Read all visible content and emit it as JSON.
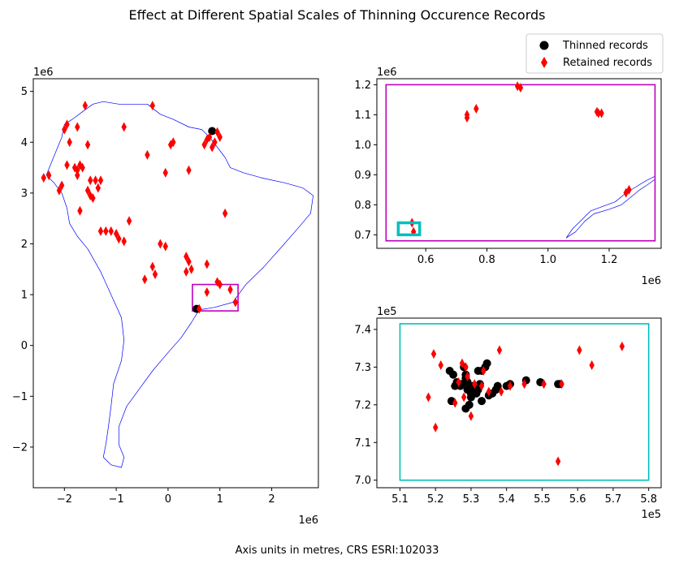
{
  "figure": {
    "title": "Effect at Different Spatial Scales of Thinning Occurence Records",
    "footer": "Axis units in metres, CRS ESRI:102033"
  },
  "legend": {
    "placement": "top-right",
    "items": [
      {
        "label": "Thinned records",
        "marker": "circle",
        "color": "#000000"
      },
      {
        "label": "Retained records",
        "marker": "diamond",
        "color": "#ff0000"
      }
    ]
  },
  "colors": {
    "coastline": "#0000ff",
    "box_mid": "#bf00bf",
    "box_small": "#00bfbf",
    "thinned": "#000000",
    "retained": "#ff0000"
  },
  "chart_data": [
    {
      "type": "scatter",
      "name": "continent",
      "xlim": [
        -2.6,
        2.9
      ],
      "ylim": [
        -2.8,
        5.25
      ],
      "scale_label": "1e6",
      "xticks": [
        -2,
        -1,
        0,
        1,
        2
      ],
      "yticks": [
        -2,
        -1,
        0,
        1,
        2,
        3,
        4,
        5
      ],
      "xtick_labels": [
        "−2",
        "−1",
        "0",
        "1",
        "2"
      ],
      "ytick_labels": [
        "−2",
        "−1",
        "0",
        "1",
        "2",
        "3",
        "4",
        "5"
      ],
      "coastline": [
        [
          -2.35,
          3.35
        ],
        [
          -2.2,
          3.2
        ],
        [
          -2.05,
          3.0
        ],
        [
          -1.95,
          2.7
        ],
        [
          -1.9,
          2.4
        ],
        [
          -1.75,
          2.15
        ],
        [
          -1.55,
          1.9
        ],
        [
          -1.3,
          1.45
        ],
        [
          -1.1,
          1.0
        ],
        [
          -0.9,
          0.55
        ],
        [
          -0.85,
          0.1
        ],
        [
          -0.9,
          -0.3
        ],
        [
          -1.05,
          -0.75
        ],
        [
          -1.1,
          -1.2
        ],
        [
          -1.15,
          -1.6
        ],
        [
          -1.2,
          -1.95
        ],
        [
          -1.25,
          -2.2
        ],
        [
          -1.1,
          -2.35
        ],
        [
          -0.9,
          -2.4
        ],
        [
          -0.85,
          -2.2
        ],
        [
          -0.95,
          -1.95
        ],
        [
          -0.95,
          -1.6
        ],
        [
          -0.8,
          -1.2
        ],
        [
          -0.55,
          -0.85
        ],
        [
          -0.3,
          -0.5
        ],
        [
          -0.05,
          -0.2
        ],
        [
          0.25,
          0.15
        ],
        [
          0.45,
          0.45
        ],
        [
          0.6,
          0.7
        ],
        [
          0.9,
          0.75
        ],
        [
          1.25,
          0.85
        ],
        [
          1.5,
          1.2
        ],
        [
          1.85,
          1.55
        ],
        [
          2.2,
          1.95
        ],
        [
          2.5,
          2.3
        ],
        [
          2.75,
          2.6
        ],
        [
          2.8,
          2.95
        ],
        [
          2.6,
          3.1
        ],
        [
          2.25,
          3.2
        ],
        [
          1.8,
          3.3
        ],
        [
          1.45,
          3.4
        ],
        [
          1.2,
          3.5
        ],
        [
          1.1,
          3.7
        ],
        [
          0.95,
          3.9
        ],
        [
          0.8,
          4.1
        ],
        [
          0.65,
          4.25
        ],
        [
          0.4,
          4.3
        ],
        [
          0.1,
          4.45
        ],
        [
          -0.15,
          4.55
        ],
        [
          -0.4,
          4.75
        ],
        [
          -0.65,
          4.75
        ],
        [
          -0.95,
          4.75
        ],
        [
          -1.25,
          4.8
        ],
        [
          -1.45,
          4.75
        ],
        [
          -1.65,
          4.6
        ],
        [
          -1.85,
          4.45
        ],
        [
          -2.0,
          4.35
        ],
        [
          -2.05,
          4.1
        ],
        [
          -2.15,
          3.85
        ],
        [
          -2.25,
          3.6
        ],
        [
          -2.35,
          3.35
        ]
      ],
      "box": {
        "x0": 0.47,
        "x1": 1.35,
        "y0": 0.68,
        "y1": 1.2
      },
      "thinned": [
        [
          0.85,
          4.22
        ],
        [
          0.55,
          0.72
        ]
      ],
      "retained": [
        [
          -0.3,
          4.72
        ],
        [
          -1.6,
          4.72
        ],
        [
          -1.95,
          4.35
        ],
        [
          -2.0,
          4.25
        ],
        [
          -1.75,
          4.3
        ],
        [
          -1.9,
          4.0
        ],
        [
          -1.55,
          3.95
        ],
        [
          -0.85,
          4.3
        ],
        [
          -2.3,
          3.35
        ],
        [
          -2.4,
          3.3
        ],
        [
          -2.1,
          3.05
        ],
        [
          -2.05,
          3.15
        ],
        [
          -1.95,
          3.55
        ],
        [
          -1.8,
          3.5
        ],
        [
          -1.75,
          3.45
        ],
        [
          -1.7,
          3.55
        ],
        [
          -1.65,
          3.5
        ],
        [
          -1.75,
          3.35
        ],
        [
          -1.55,
          3.05
        ],
        [
          -1.5,
          3.25
        ],
        [
          -1.4,
          3.25
        ],
        [
          -1.35,
          3.1
        ],
        [
          -1.5,
          2.95
        ],
        [
          -1.45,
          2.9
        ],
        [
          -1.3,
          3.25
        ],
        [
          -1.7,
          2.65
        ],
        [
          -0.4,
          3.75
        ],
        [
          0.05,
          3.95
        ],
        [
          0.1,
          4.0
        ],
        [
          -0.05,
          3.4
        ],
        [
          0.4,
          3.45
        ],
        [
          0.7,
          3.95
        ],
        [
          0.75,
          4.05
        ],
        [
          0.8,
          4.1
        ],
        [
          0.9,
          4.0
        ],
        [
          1.0,
          4.1
        ],
        [
          0.95,
          4.2
        ],
        [
          0.85,
          3.9
        ],
        [
          1.1,
          2.6
        ],
        [
          -0.75,
          2.45
        ],
        [
          -0.95,
          2.1
        ],
        [
          -1.0,
          2.2
        ],
        [
          -1.1,
          2.25
        ],
        [
          -1.2,
          2.25
        ],
        [
          -1.3,
          2.25
        ],
        [
          -0.85,
          2.05
        ],
        [
          -0.15,
          2.0
        ],
        [
          -0.05,
          1.95
        ],
        [
          -0.3,
          1.55
        ],
        [
          -0.25,
          1.4
        ],
        [
          -0.45,
          1.3
        ],
        [
          0.35,
          1.75
        ],
        [
          0.4,
          1.65
        ],
        [
          0.45,
          1.5
        ],
        [
          0.35,
          1.45
        ],
        [
          0.75,
          1.6
        ],
        [
          0.75,
          1.05
        ],
        [
          0.95,
          1.25
        ],
        [
          1.0,
          1.2
        ],
        [
          1.2,
          1.1
        ],
        [
          1.3,
          0.85
        ],
        [
          0.6,
          0.72
        ]
      ]
    },
    {
      "type": "scatter",
      "name": "mid-scale",
      "xlim": [
        0.44,
        1.37
      ],
      "ylim": [
        0.655,
        1.22
      ],
      "scale_label": "1e6",
      "xticks": [
        0.6,
        0.8,
        1.0,
        1.2
      ],
      "yticks": [
        0.7,
        0.8,
        0.9,
        1.0,
        1.1,
        1.2
      ],
      "xtick_labels": [
        "0.6",
        "0.8",
        "1.0",
        "1.2"
      ],
      "ytick_labels": [
        "0.7",
        "0.8",
        "0.9",
        "1.0",
        "1.1",
        "1.2"
      ],
      "coastline": [
        [
          1.35,
          0.895
        ],
        [
          1.32,
          0.88
        ],
        [
          1.28,
          0.855
        ],
        [
          1.25,
          0.835
        ],
        [
          1.22,
          0.81
        ],
        [
          1.18,
          0.795
        ],
        [
          1.14,
          0.78
        ],
        [
          1.11,
          0.75
        ],
        [
          1.08,
          0.72
        ],
        [
          1.06,
          0.69
        ],
        [
          1.09,
          0.71
        ],
        [
          1.12,
          0.745
        ],
        [
          1.15,
          0.77
        ],
        [
          1.2,
          0.785
        ],
        [
          1.24,
          0.8
        ],
        [
          1.27,
          0.825
        ],
        [
          1.3,
          0.85
        ],
        [
          1.33,
          0.87
        ],
        [
          1.35,
          0.885
        ]
      ],
      "box": {
        "x0": 0.47,
        "x1": 1.35,
        "y0": 0.68,
        "y1": 1.2
      },
      "inner_box": {
        "x0": 0.51,
        "x1": 0.58,
        "y0": 0.7,
        "y1": 0.74
      },
      "thinned": [],
      "retained": [
        [
          0.555,
          0.74
        ],
        [
          0.56,
          0.71
        ],
        [
          0.735,
          1.1
        ],
        [
          0.735,
          1.09
        ],
        [
          0.765,
          1.12
        ],
        [
          0.9,
          1.195
        ],
        [
          0.91,
          1.19
        ],
        [
          1.16,
          1.11
        ],
        [
          1.165,
          1.105
        ],
        [
          1.175,
          1.105
        ],
        [
          1.255,
          0.84
        ],
        [
          1.265,
          0.85
        ]
      ]
    },
    {
      "type": "scatter",
      "name": "small-scale",
      "xlim": [
        5.035,
        5.835
      ],
      "ylim": [
        6.98,
        7.43
      ],
      "scale_label": "1e5",
      "xticks": [
        5.1,
        5.2,
        5.3,
        5.4,
        5.5,
        5.6,
        5.7,
        5.8
      ],
      "yticks": [
        7.0,
        7.1,
        7.2,
        7.3,
        7.4
      ],
      "xtick_labels": [
        "5.1",
        "5.2",
        "5.3",
        "5.4",
        "5.5",
        "5.6",
        "5.7",
        "5.8"
      ],
      "ytick_labels": [
        "7.0",
        "7.1",
        "7.2",
        "7.3",
        "7.4"
      ],
      "box": {
        "x0": 5.1,
        "x1": 5.8,
        "y0": 7.0,
        "y1": 7.415
      },
      "thinned": [
        [
          5.24,
          7.29
        ],
        [
          5.245,
          7.21
        ],
        [
          5.25,
          7.28
        ],
        [
          5.255,
          7.25
        ],
        [
          5.26,
          7.26
        ],
        [
          5.27,
          7.25
        ],
        [
          5.275,
          7.255
        ],
        [
          5.28,
          7.3
        ],
        [
          5.285,
          7.27
        ],
        [
          5.285,
          7.28
        ],
        [
          5.29,
          7.26
        ],
        [
          5.29,
          7.24
        ],
        [
          5.3,
          7.23
        ],
        [
          5.3,
          7.22
        ],
        [
          5.295,
          7.2
        ],
        [
          5.305,
          7.25
        ],
        [
          5.31,
          7.245
        ],
        [
          5.315,
          7.23
        ],
        [
          5.32,
          7.24
        ],
        [
          5.32,
          7.29
        ],
        [
          5.33,
          7.29
        ],
        [
          5.325,
          7.255
        ],
        [
          5.33,
          7.21
        ],
        [
          5.34,
          7.3
        ],
        [
          5.345,
          7.31
        ],
        [
          5.35,
          7.225
        ],
        [
          5.36,
          7.23
        ],
        [
          5.37,
          7.24
        ],
        [
          5.375,
          7.25
        ],
        [
          5.4,
          7.25
        ],
        [
          5.41,
          7.255
        ],
        [
          5.455,
          7.265
        ],
        [
          5.495,
          7.26
        ],
        [
          5.545,
          7.255
        ],
        [
          5.55,
          7.255
        ],
        [
          5.285,
          7.19
        ]
      ],
      "retained": [
        [
          5.195,
          7.335
        ],
        [
          5.215,
          7.305
        ],
        [
          5.18,
          7.22
        ],
        [
          5.2,
          7.14
        ],
        [
          5.255,
          7.205
        ],
        [
          5.265,
          7.26
        ],
        [
          5.275,
          7.31
        ],
        [
          5.28,
          7.22
        ],
        [
          5.285,
          7.3
        ],
        [
          5.29,
          7.275
        ],
        [
          5.3,
          7.17
        ],
        [
          5.31,
          7.255
        ],
        [
          5.33,
          7.25
        ],
        [
          5.335,
          7.29
        ],
        [
          5.35,
          7.235
        ],
        [
          5.38,
          7.345
        ],
        [
          5.385,
          7.235
        ],
        [
          5.41,
          7.25
        ],
        [
          5.45,
          7.255
        ],
        [
          5.505,
          7.255
        ],
        [
          5.555,
          7.255
        ],
        [
          5.545,
          7.05
        ],
        [
          5.605,
          7.345
        ],
        [
          5.64,
          7.305
        ],
        [
          5.725,
          7.355
        ]
      ]
    }
  ]
}
